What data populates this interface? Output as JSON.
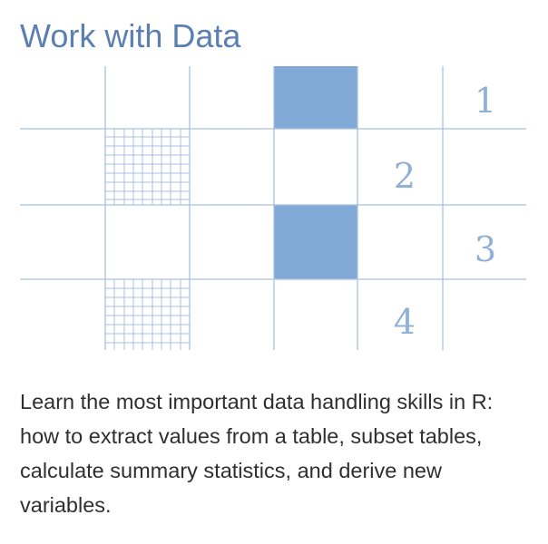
{
  "card": {
    "title": "Work with Data",
    "description": "Learn the most important data handling skills in R: how to extract values from a table, subset tables, calculate summary statistics, and derive new variables."
  },
  "illustration": {
    "row_numbers": [
      "1",
      "2",
      "3",
      "4"
    ],
    "colors": {
      "grid_line": "#a9c1df",
      "filled_cell": "#80a9d8",
      "number": "#8fb0d8",
      "title": "#5b7fb1"
    },
    "icons": [
      "table-grid-icon",
      "mesh-pattern-icon"
    ]
  }
}
